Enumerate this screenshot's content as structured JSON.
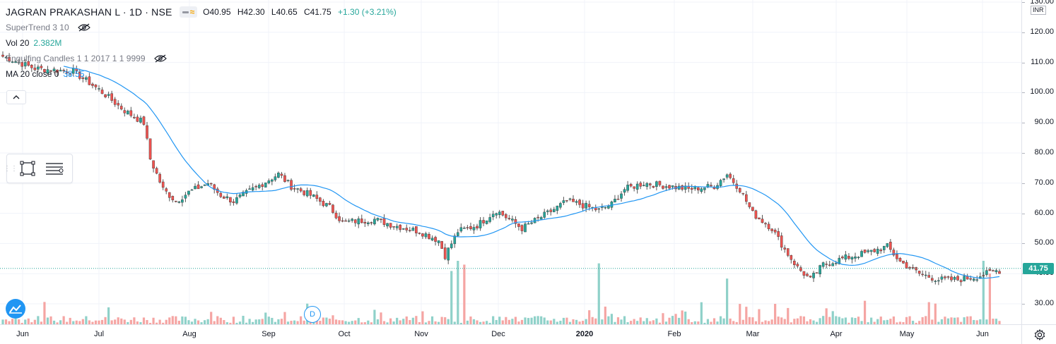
{
  "header": {
    "title": "JAGRAN PRAKASHAN L · 1D · NSE",
    "ohlc": {
      "open": "O40.95",
      "high": "H42.30",
      "low": "L40.65",
      "close": "C41.75",
      "change": "+1.30 (+3.21%)"
    }
  },
  "indicators": [
    {
      "label": "SuperTrend 3 10",
      "value": "",
      "hidden": true
    },
    {
      "label": "Vol 20",
      "value": "2.382M",
      "hidden": false
    },
    {
      "label": "Engulfing Candles 1 1 2017 1 1 9999",
      "value": "",
      "hidden": true
    },
    {
      "label": "MA 20 close 0",
      "value": "38.55",
      "hidden": false
    }
  ],
  "price_axis": {
    "currency": "INR",
    "labels": [
      "130.00",
      "120.00",
      "110.00",
      "100.00",
      "90.00",
      "80.00",
      "70.00",
      "60.00",
      "50.00",
      "40.00",
      "30.00"
    ],
    "last_price": "41.75"
  },
  "time_axis": [
    "Jun",
    "Jul",
    "Aug",
    "Sep",
    "Oct",
    "Nov",
    "Dec",
    "2020",
    "Feb",
    "Mar",
    "Apr",
    "May",
    "Jun"
  ],
  "dividend_marker": "D",
  "colors": {
    "up": "#26a69a",
    "down": "#ef5350",
    "ma": "#2196f3",
    "vol_up": "#8fd1c9",
    "vol_down": "#f5a5a3"
  },
  "chart_data": {
    "type": "candlestick",
    "ylim": [
      25,
      130
    ],
    "ma_period": 20,
    "anchors": [
      [
        0,
        112
      ],
      [
        10,
        108
      ],
      [
        22,
        107
      ],
      [
        30,
        101
      ],
      [
        38,
        94
      ],
      [
        44,
        90
      ],
      [
        46,
        78
      ],
      [
        50,
        68
      ],
      [
        54,
        64
      ],
      [
        58,
        67
      ],
      [
        64,
        70
      ],
      [
        68,
        66
      ],
      [
        72,
        64
      ],
      [
        78,
        68
      ],
      [
        86,
        73
      ],
      [
        90,
        69
      ],
      [
        96,
        66
      ],
      [
        102,
        62
      ],
      [
        106,
        57
      ],
      [
        116,
        58
      ],
      [
        122,
        56
      ],
      [
        130,
        54
      ],
      [
        136,
        51
      ],
      [
        138,
        46
      ],
      [
        142,
        54
      ],
      [
        148,
        56
      ],
      [
        154,
        61
      ],
      [
        158,
        58
      ],
      [
        162,
        55
      ],
      [
        170,
        60
      ],
      [
        176,
        64
      ],
      [
        180,
        63
      ],
      [
        186,
        61
      ],
      [
        190,
        63
      ],
      [
        194,
        68
      ],
      [
        200,
        70
      ],
      [
        208,
        69
      ],
      [
        214,
        68
      ],
      [
        222,
        69
      ],
      [
        226,
        73
      ],
      [
        230,
        68
      ],
      [
        234,
        60
      ],
      [
        240,
        55
      ],
      [
        244,
        48
      ],
      [
        248,
        42
      ],
      [
        252,
        38
      ],
      [
        256,
        43
      ],
      [
        262,
        45
      ],
      [
        270,
        47
      ],
      [
        276,
        49
      ],
      [
        280,
        44
      ],
      [
        286,
        40
      ],
      [
        292,
        38
      ],
      [
        298,
        38
      ],
      [
        304,
        39
      ],
      [
        310,
        41
      ]
    ],
    "volume_spikes": [
      [
        140,
        42
      ],
      [
        142,
        50
      ],
      [
        144,
        47
      ],
      [
        186,
        48
      ],
      [
        226,
        36
      ],
      [
        306,
        50
      ],
      [
        308,
        40
      ]
    ]
  }
}
